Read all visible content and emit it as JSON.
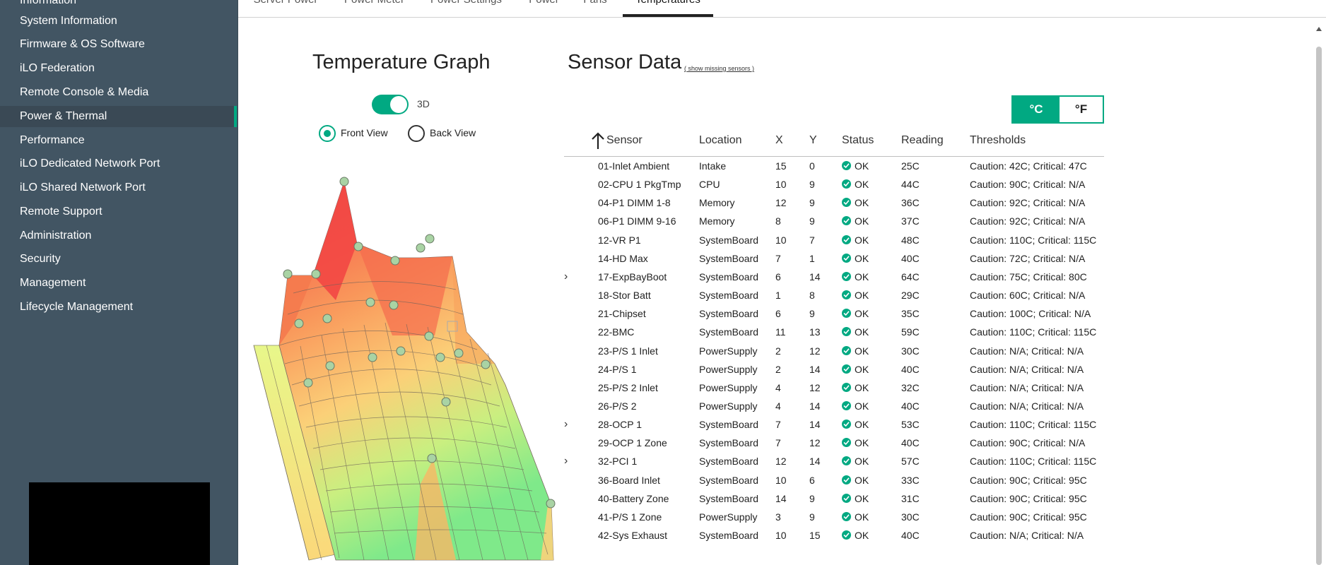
{
  "sidebar": {
    "items": [
      {
        "label": "Information",
        "icon": "none"
      },
      {
        "label": "System Information"
      },
      {
        "label": "Firmware & OS Software"
      },
      {
        "label": "iLO Federation"
      },
      {
        "label": "Remote Console & Media"
      },
      {
        "label": "Power & Thermal"
      },
      {
        "label": "Performance"
      },
      {
        "label": "iLO Dedicated Network Port"
      },
      {
        "label": "iLO Shared Network Port"
      },
      {
        "label": "Remote Support"
      },
      {
        "label": "Administration"
      },
      {
        "label": "Security"
      },
      {
        "label": "Management"
      },
      {
        "label": "Lifecycle Management"
      }
    ],
    "active_index": 5
  },
  "tabs": [
    {
      "label": "Server Power"
    },
    {
      "label": "Power Meter"
    },
    {
      "label": "Power Settings"
    },
    {
      "label": "Power"
    },
    {
      "label": "Fans"
    },
    {
      "label": "Temperatures"
    }
  ],
  "graph": {
    "title": "Temperature Graph",
    "toggle_label": "3D",
    "toggle_on": true,
    "front_view_label": "Front View",
    "back_view_label": "Back View",
    "selected_view": "Front View"
  },
  "sensors": {
    "title": "Sensor Data",
    "missing_link": "( show missing sensors )",
    "unit_c": "°C",
    "unit_f": "°F",
    "selected_unit": "°C",
    "columns": {
      "sensor": "Sensor",
      "location": "Location",
      "x": "X",
      "y": "Y",
      "status": "Status",
      "reading": "Reading",
      "thresholds": "Thresholds"
    },
    "rows": [
      {
        "sensor": "01-Inlet Ambient",
        "location": "Intake",
        "x": "15",
        "y": "0",
        "status": "OK",
        "reading": "25C",
        "thresholds": "Caution: 42C; Critical: 47C",
        "expandable": false
      },
      {
        "sensor": "02-CPU 1 PkgTmp",
        "location": "CPU",
        "x": "10",
        "y": "9",
        "status": "OK",
        "reading": "44C",
        "thresholds": "Caution: 90C; Critical: N/A",
        "expandable": false
      },
      {
        "sensor": "04-P1 DIMM 1-8",
        "location": "Memory",
        "x": "12",
        "y": "9",
        "status": "OK",
        "reading": "36C",
        "thresholds": "Caution: 92C; Critical: N/A",
        "expandable": false
      },
      {
        "sensor": "06-P1 DIMM 9-16",
        "location": "Memory",
        "x": "8",
        "y": "9",
        "status": "OK",
        "reading": "37C",
        "thresholds": "Caution: 92C; Critical: N/A",
        "expandable": false
      },
      {
        "sensor": "12-VR P1",
        "location": "SystemBoard",
        "x": "10",
        "y": "7",
        "status": "OK",
        "reading": "48C",
        "thresholds": "Caution: 110C; Critical: 115C",
        "expandable": false
      },
      {
        "sensor": "14-HD Max",
        "location": "SystemBoard",
        "x": "7",
        "y": "1",
        "status": "OK",
        "reading": "40C",
        "thresholds": "Caution: 72C; Critical: N/A",
        "expandable": false
      },
      {
        "sensor": "17-ExpBayBoot",
        "location": "SystemBoard",
        "x": "6",
        "y": "14",
        "status": "OK",
        "reading": "64C",
        "thresholds": "Caution: 75C; Critical: 80C",
        "expandable": true
      },
      {
        "sensor": "18-Stor Batt",
        "location": "SystemBoard",
        "x": "1",
        "y": "8",
        "status": "OK",
        "reading": "29C",
        "thresholds": "Caution: 60C; Critical: N/A",
        "expandable": false
      },
      {
        "sensor": "21-Chipset",
        "location": "SystemBoard",
        "x": "6",
        "y": "9",
        "status": "OK",
        "reading": "35C",
        "thresholds": "Caution: 100C; Critical: N/A",
        "expandable": false
      },
      {
        "sensor": "22-BMC",
        "location": "SystemBoard",
        "x": "11",
        "y": "13",
        "status": "OK",
        "reading": "59C",
        "thresholds": "Caution: 110C; Critical: 115C",
        "expandable": false
      },
      {
        "sensor": "23-P/S 1 Inlet",
        "location": "PowerSupply",
        "x": "2",
        "y": "12",
        "status": "OK",
        "reading": "30C",
        "thresholds": "Caution: N/A; Critical: N/A",
        "expandable": false
      },
      {
        "sensor": "24-P/S 1",
        "location": "PowerSupply",
        "x": "2",
        "y": "14",
        "status": "OK",
        "reading": "40C",
        "thresholds": "Caution: N/A; Critical: N/A",
        "expandable": false
      },
      {
        "sensor": "25-P/S 2 Inlet",
        "location": "PowerSupply",
        "x": "4",
        "y": "12",
        "status": "OK",
        "reading": "32C",
        "thresholds": "Caution: N/A; Critical: N/A",
        "expandable": false
      },
      {
        "sensor": "26-P/S 2",
        "location": "PowerSupply",
        "x": "4",
        "y": "14",
        "status": "OK",
        "reading": "40C",
        "thresholds": "Caution: N/A; Critical: N/A",
        "expandable": false
      },
      {
        "sensor": "28-OCP 1",
        "location": "SystemBoard",
        "x": "7",
        "y": "14",
        "status": "OK",
        "reading": "53C",
        "thresholds": "Caution: 110C; Critical: 115C",
        "expandable": true
      },
      {
        "sensor": "29-OCP 1 Zone",
        "location": "SystemBoard",
        "x": "7",
        "y": "12",
        "status": "OK",
        "reading": "40C",
        "thresholds": "Caution: 90C; Critical: N/A",
        "expandable": false
      },
      {
        "sensor": "32-PCI 1",
        "location": "SystemBoard",
        "x": "12",
        "y": "14",
        "status": "OK",
        "reading": "57C",
        "thresholds": "Caution: 110C; Critical: 115C",
        "expandable": true
      },
      {
        "sensor": "36-Board Inlet",
        "location": "SystemBoard",
        "x": "10",
        "y": "6",
        "status": "OK",
        "reading": "33C",
        "thresholds": "Caution: 90C; Critical: 95C",
        "expandable": false
      },
      {
        "sensor": "40-Battery Zone",
        "location": "SystemBoard",
        "x": "14",
        "y": "9",
        "status": "OK",
        "reading": "31C",
        "thresholds": "Caution: 90C; Critical: 95C",
        "expandable": false
      },
      {
        "sensor": "41-P/S 1 Zone",
        "location": "PowerSupply",
        "x": "3",
        "y": "9",
        "status": "OK",
        "reading": "30C",
        "thresholds": "Caution: 90C; Critical: 95C",
        "expandable": false
      },
      {
        "sensor": "42-Sys Exhaust",
        "location": "SystemBoard",
        "x": "10",
        "y": "15",
        "status": "OK",
        "reading": "40C",
        "thresholds": "Caution: N/A; Critical: N/A",
        "expandable": false
      }
    ]
  },
  "colors": {
    "accent": "#01a982",
    "sidebar_bg": "#425563"
  }
}
